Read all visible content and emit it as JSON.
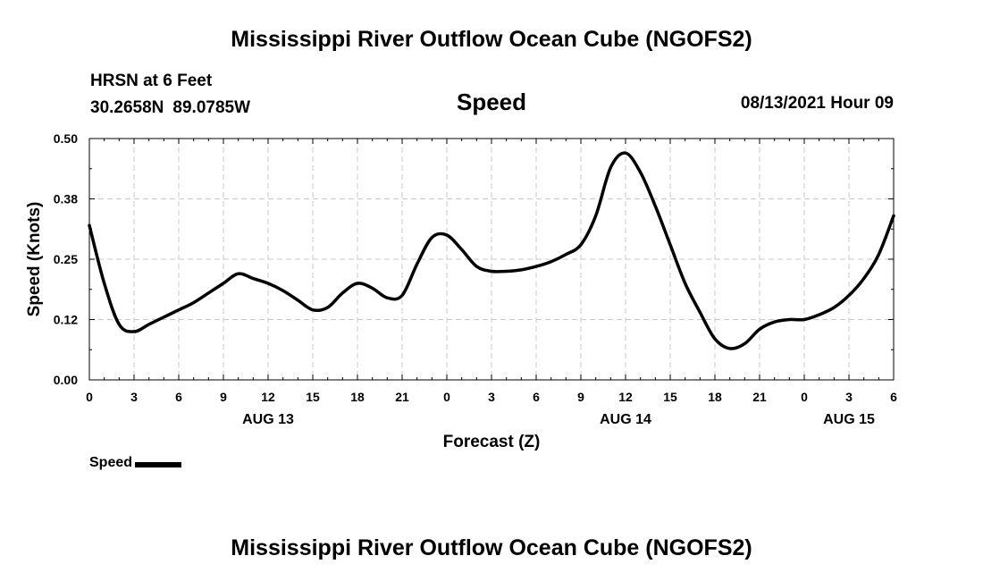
{
  "page_title": "Mississippi River Outflow Ocean Cube (NGOFS2)",
  "footer_title": "Mississippi River Outflow Ocean Cube (NGOFS2)",
  "station": {
    "name": "HRSN at 6 Feet",
    "lat": "30.2658N",
    "lon": "89.0785W"
  },
  "variable_title": "Speed",
  "datetime": "08/13/2021 Hour 09",
  "chart_data": {
    "type": "line",
    "title": "Speed",
    "xlabel": "Forecast (Z)",
    "ylabel": "Speed (Knots)",
    "xlim": [
      0,
      54
    ],
    "ylim": [
      0,
      0.5
    ],
    "grid": true,
    "y_ticks": [
      {
        "value": 0.0,
        "label": "0.00"
      },
      {
        "value": 0.125,
        "label": "0.12"
      },
      {
        "value": 0.25,
        "label": "0.25"
      },
      {
        "value": 0.375,
        "label": "0.38"
      },
      {
        "value": 0.5,
        "label": "0.50"
      }
    ],
    "x_ticks": [
      {
        "hour": 0,
        "label": "0"
      },
      {
        "hour": 3,
        "label": "3"
      },
      {
        "hour": 6,
        "label": "6"
      },
      {
        "hour": 9,
        "label": "9"
      },
      {
        "hour": 12,
        "label": "12"
      },
      {
        "hour": 15,
        "label": "15"
      },
      {
        "hour": 18,
        "label": "18"
      },
      {
        "hour": 21,
        "label": "21"
      },
      {
        "hour": 24,
        "label": "0"
      },
      {
        "hour": 27,
        "label": "3"
      },
      {
        "hour": 30,
        "label": "6"
      },
      {
        "hour": 33,
        "label": "9"
      },
      {
        "hour": 36,
        "label": "12"
      },
      {
        "hour": 39,
        "label": "15"
      },
      {
        "hour": 42,
        "label": "18"
      },
      {
        "hour": 45,
        "label": "21"
      },
      {
        "hour": 48,
        "label": "0"
      },
      {
        "hour": 51,
        "label": "3"
      },
      {
        "hour": 54,
        "label": "6"
      }
    ],
    "date_labels": [
      {
        "hour": 12,
        "label": "AUG 13"
      },
      {
        "hour": 36,
        "label": "AUG 14"
      },
      {
        "hour": 51,
        "label": "AUG 15"
      }
    ],
    "series": [
      {
        "name": "Speed",
        "color": "#000000",
        "x": [
          0,
          1,
          2,
          3,
          4,
          5,
          6,
          7,
          8,
          9,
          10,
          11,
          12,
          13,
          14,
          15,
          16,
          17,
          18,
          19,
          20,
          21,
          22,
          23,
          24,
          25,
          26,
          27,
          28,
          29,
          30,
          31,
          32,
          33,
          34,
          35,
          36,
          37,
          38,
          39,
          40,
          41,
          42,
          43,
          44,
          45,
          46,
          47,
          48,
          49,
          50,
          51,
          52,
          53,
          54
        ],
        "values": [
          0.32,
          0.2,
          0.115,
          0.1,
          0.115,
          0.13,
          0.145,
          0.16,
          0.18,
          0.2,
          0.22,
          0.21,
          0.2,
          0.185,
          0.165,
          0.145,
          0.15,
          0.18,
          0.2,
          0.19,
          0.17,
          0.175,
          0.24,
          0.295,
          0.3,
          0.27,
          0.235,
          0.225,
          0.225,
          0.228,
          0.235,
          0.245,
          0.26,
          0.28,
          0.34,
          0.44,
          0.47,
          0.43,
          0.36,
          0.28,
          0.2,
          0.14,
          0.085,
          0.065,
          0.075,
          0.105,
          0.12,
          0.125,
          0.125,
          0.135,
          0.15,
          0.175,
          0.21,
          0.26,
          0.34
        ]
      }
    ]
  },
  "legend": {
    "label": "Speed"
  }
}
